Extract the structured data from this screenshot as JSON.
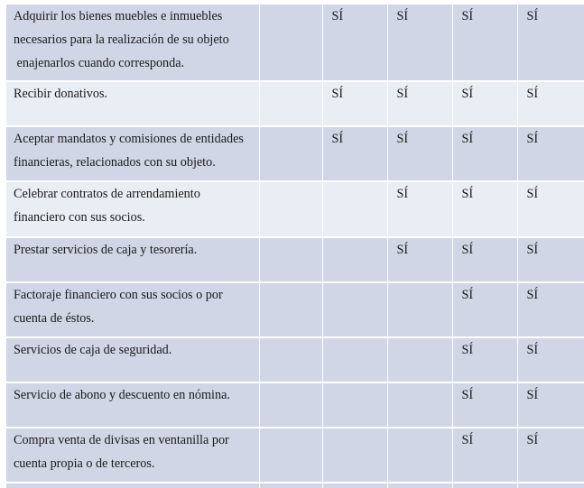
{
  "table": {
    "rows": [
      {
        "desc": [
          "Adquirir los bienes muebles e inmuebles",
          "necesarios para la realización de su objeto",
          " enajenarlos cuando corresponda."
        ],
        "marks": [
          "",
          "SÍ",
          "SÍ",
          "SÍ",
          "SÍ"
        ],
        "height": 85
      },
      {
        "desc": [
          "Recibir donativos."
        ],
        "marks": [
          "",
          "SÍ",
          "SÍ",
          "SÍ",
          "SÍ"
        ],
        "height": 50
      },
      {
        "desc": [
          "Aceptar mandatos y comisiones de entidades",
          "financieras, relacionados con su objeto."
        ],
        "marks": [
          "",
          "SÍ",
          "SÍ",
          "SÍ",
          "SÍ"
        ],
        "height": 61
      },
      {
        "desc": [
          "Celebrar contratos de arrendamiento",
          "financiero con sus socios."
        ],
        "marks": [
          "",
          "",
          "SÍ",
          "SÍ",
          "SÍ"
        ],
        "height": 62
      },
      {
        "desc": [
          "Prestar servicios de caja y tesorería."
        ],
        "marks": [
          "",
          "",
          "SÍ",
          "SÍ",
          "SÍ"
        ],
        "height": 50
      },
      {
        "desc": [
          "Factoraje financiero con sus socios o por",
          "cuenta de éstos."
        ],
        "marks": [
          "",
          "",
          "",
          "SÍ",
          "SÍ"
        ],
        "height": 61
      },
      {
        "desc": [
          "Servicios de caja de seguridad."
        ],
        "marks": [
          "",
          "",
          "",
          "SÍ",
          "SÍ"
        ],
        "height": 50
      },
      {
        "desc": [
          "Servicio de abono y descuento en nómina."
        ],
        "marks": [
          "",
          "",
          "",
          "SÍ",
          "SÍ"
        ],
        "height": 50
      },
      {
        "desc": [
          "Compra venta de divisas en ventanilla por",
          "cuenta propia o de terceros."
        ],
        "marks": [
          "",
          "",
          "",
          "SÍ",
          "SÍ"
        ],
        "height": 61
      }
    ]
  }
}
